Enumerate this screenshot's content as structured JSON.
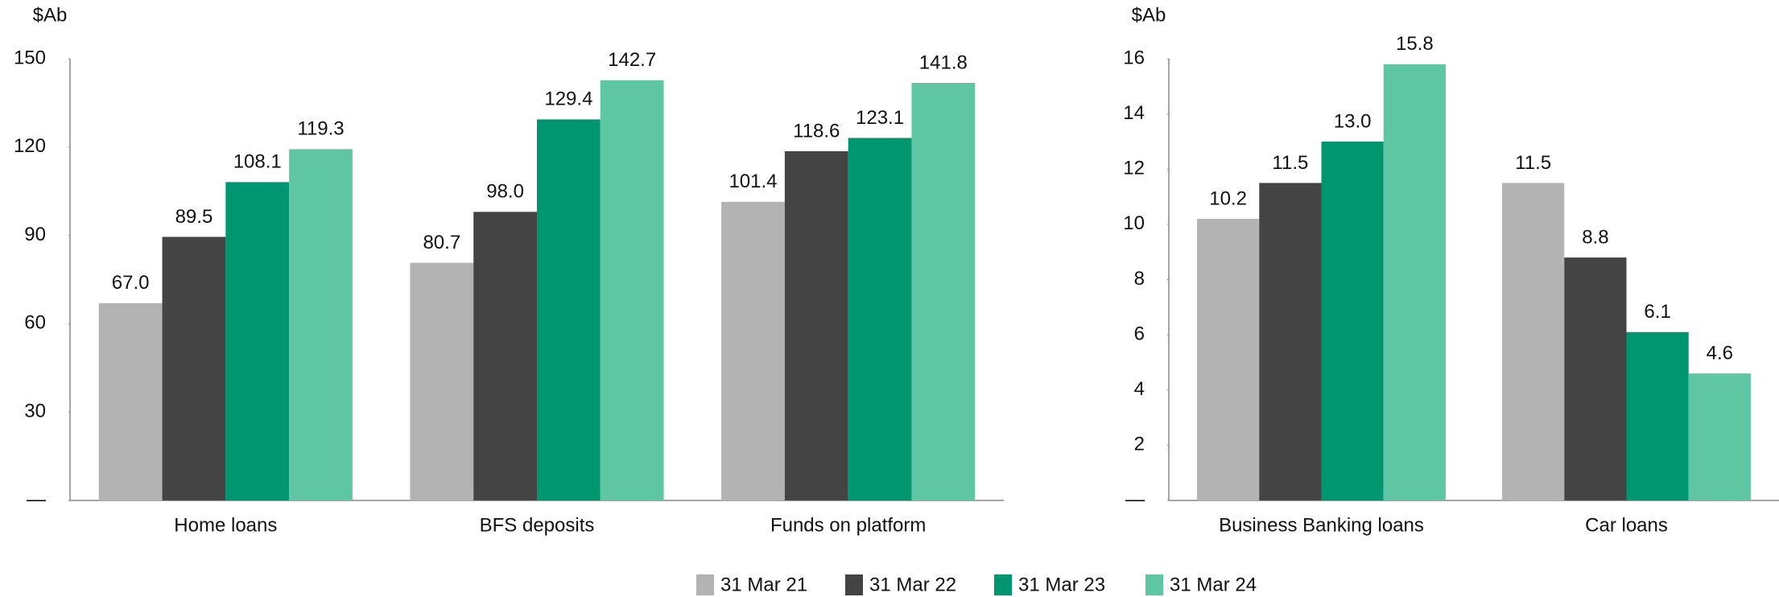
{
  "chart_data": [
    {
      "type": "bar",
      "y_label": "$Ab",
      "categories": [
        "Home loans",
        "BFS deposits",
        "Funds on platform"
      ],
      "series": [
        {
          "name": "31 Mar 21",
          "color": "#b3b3b3",
          "values": [
            67.0,
            80.7,
            101.4
          ],
          "value_labels": [
            "67.0",
            "80.7",
            "101.4"
          ]
        },
        {
          "name": "31 Mar 22",
          "color": "#444444",
          "values": [
            89.5,
            98.0,
            118.6
          ],
          "value_labels": [
            "89.5",
            "98.0",
            "118.6"
          ]
        },
        {
          "name": "31 Mar 23",
          "color": "#009670",
          "values": [
            108.1,
            129.4,
            123.1
          ],
          "value_labels": [
            "108.1",
            "129.4",
            "123.1"
          ]
        },
        {
          "name": "31 Mar 24",
          "color": "#5fc6a4",
          "values": [
            119.3,
            142.7,
            141.8
          ],
          "value_labels": [
            "119.3",
            "142.7",
            "141.8"
          ]
        }
      ],
      "ylim": [
        0,
        150
      ],
      "yticks": [
        {
          "value": 0,
          "label": "—"
        },
        30,
        60,
        90,
        120,
        150
      ]
    },
    {
      "type": "bar",
      "y_label": "$Ab",
      "categories": [
        "Business Banking loans",
        "Car loans"
      ],
      "series": [
        {
          "color": "#b3b3b3",
          "values": [
            10.2,
            11.5
          ],
          "value_labels": [
            "10.2",
            "11.5"
          ]
        },
        {
          "color": "#444444",
          "values": [
            11.5,
            8.8
          ],
          "value_labels": [
            "11.5",
            "8.8"
          ]
        },
        {
          "color": "#009670",
          "values": [
            13.0,
            6.1
          ],
          "value_labels": [
            "13.0",
            "6.1"
          ]
        },
        {
          "color": "#5fc6a4",
          "values": [
            15.8,
            4.6
          ],
          "value_labels": [
            "15.8",
            "4.6"
          ]
        }
      ],
      "ylim": [
        0,
        16
      ],
      "yticks": [
        {
          "value": 0,
          "label": "—"
        },
        2,
        4,
        6,
        8,
        10,
        12,
        14,
        16
      ]
    }
  ]
}
